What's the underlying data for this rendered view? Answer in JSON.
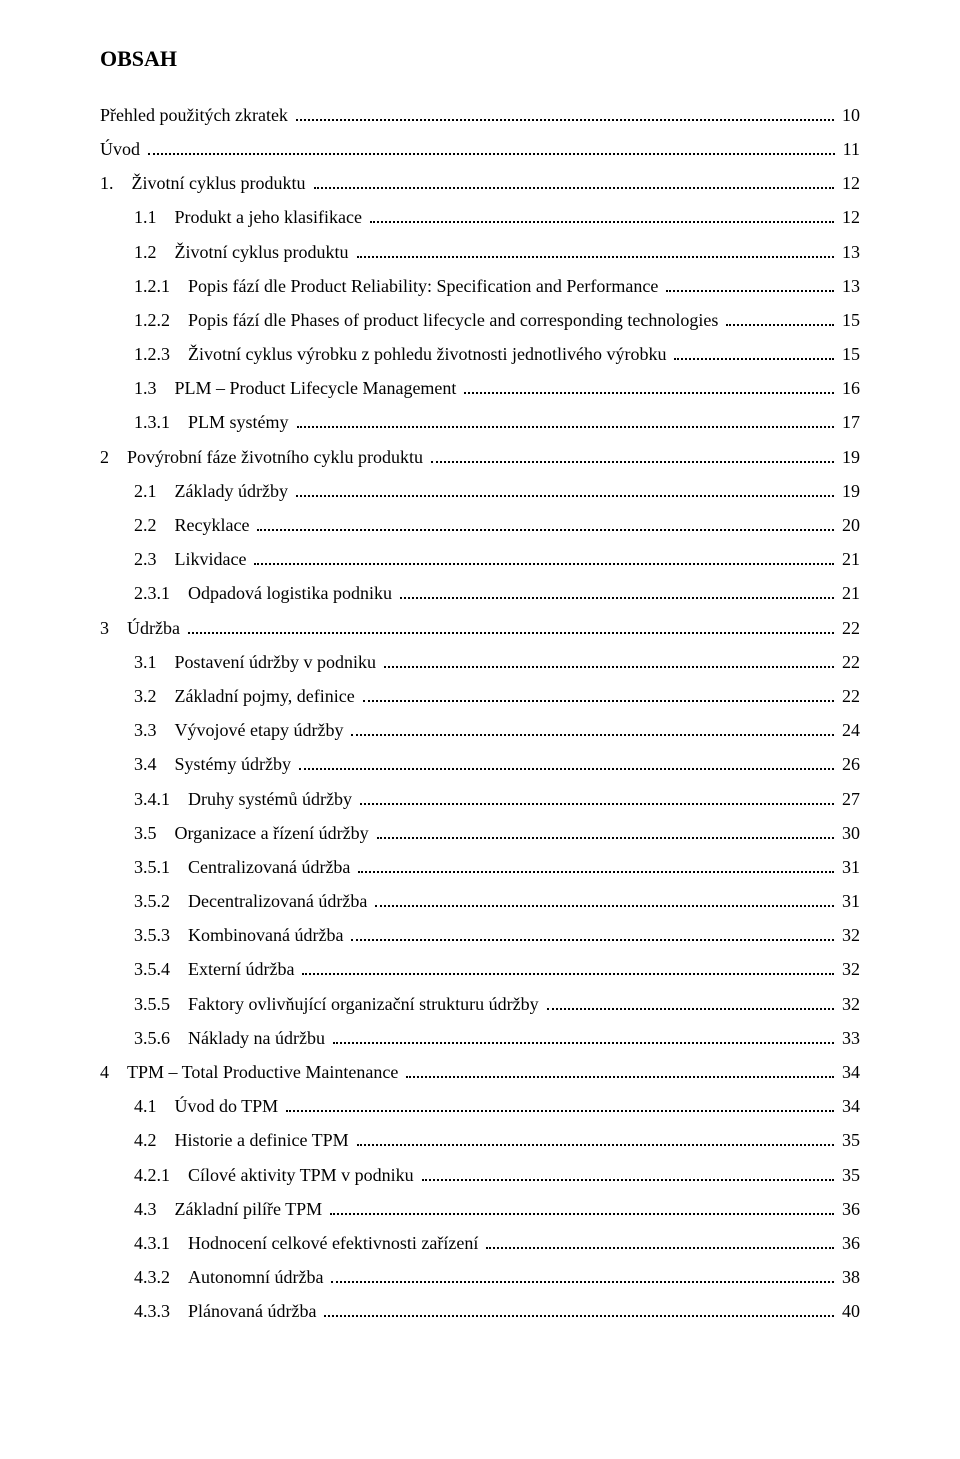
{
  "title": "OBSAH",
  "font_color": "#000000",
  "bg_color": "#ffffff",
  "dot_color": "#000000",
  "entries": [
    {
      "label": "Přehled použitých zkratek",
      "page": "10",
      "indent": 0
    },
    {
      "label": "Úvod",
      "page": "11",
      "indent": 0
    },
    {
      "label": "1. Životní cyklus produktu",
      "page": "12",
      "indent": 0
    },
    {
      "label": "1.1 Produkt a jeho klasifikace",
      "page": "12",
      "indent": 1
    },
    {
      "label": "1.2 Životní cyklus produktu",
      "page": "13",
      "indent": 1
    },
    {
      "label": "1.2.1 Popis fází dle Product Reliability: Specification and Performance",
      "page": "13",
      "indent": 2
    },
    {
      "label": "1.2.2 Popis fází dle Phases of product lifecycle and corresponding technologies",
      "page": "15",
      "indent": 2
    },
    {
      "label": "1.2.3 Životní cyklus výrobku z pohledu životnosti jednotlivého výrobku",
      "page": "15",
      "indent": 2
    },
    {
      "label": "1.3 PLM – Product Lifecycle Management",
      "page": "16",
      "indent": 1
    },
    {
      "label": "1.3.1 PLM systémy",
      "page": "17",
      "indent": 2
    },
    {
      "label": "2 Povýrobní fáze životního cyklu produktu",
      "page": "19",
      "indent": 0
    },
    {
      "label": "2.1 Základy údržby",
      "page": "19",
      "indent": 1
    },
    {
      "label": "2.2 Recyklace",
      "page": "20",
      "indent": 1
    },
    {
      "label": "2.3 Likvidace",
      "page": "21",
      "indent": 1
    },
    {
      "label": "2.3.1 Odpadová logistika podniku",
      "page": "21",
      "indent": 2
    },
    {
      "label": "3 Údržba",
      "page": "22",
      "indent": 0
    },
    {
      "label": "3.1 Postavení údržby v podniku",
      "page": "22",
      "indent": 1
    },
    {
      "label": "3.2 Základní pojmy, definice",
      "page": "22",
      "indent": 1
    },
    {
      "label": "3.3 Vývojové etapy údržby",
      "page": "24",
      "indent": 1
    },
    {
      "label": "3.4 Systémy údržby",
      "page": "26",
      "indent": 1
    },
    {
      "label": "3.4.1 Druhy systémů údržby",
      "page": "27",
      "indent": 2
    },
    {
      "label": "3.5 Organizace a řízení údržby",
      "page": "30",
      "indent": 1
    },
    {
      "label": "3.5.1 Centralizovaná údržba",
      "page": "31",
      "indent": 2
    },
    {
      "label": "3.5.2 Decentralizovaná údržba",
      "page": "31",
      "indent": 2
    },
    {
      "label": "3.5.3 Kombinovaná údržba",
      "page": "32",
      "indent": 2
    },
    {
      "label": "3.5.4 Externí údržba",
      "page": "32",
      "indent": 2
    },
    {
      "label": "3.5.5 Faktory ovlivňující organizační strukturu údržby",
      "page": "32",
      "indent": 2
    },
    {
      "label": "3.5.6 Náklady na údržbu",
      "page": "33",
      "indent": 2
    },
    {
      "label": "4 TPM – Total Productive Maintenance",
      "page": "34",
      "indent": 0
    },
    {
      "label": "4.1 Úvod do TPM",
      "page": "34",
      "indent": 1
    },
    {
      "label": "4.2 Historie a definice TPM",
      "page": "35",
      "indent": 1
    },
    {
      "label": "4.2.1 Cílové aktivity TPM v podniku",
      "page": "35",
      "indent": 2
    },
    {
      "label": "4.3 Základní pilíře TPM",
      "page": "36",
      "indent": 1
    },
    {
      "label": "4.3.1 Hodnocení celkové efektivnosti zařízení",
      "page": "36",
      "indent": 2
    },
    {
      "label": "4.3.2 Autonomní údržba",
      "page": "38",
      "indent": 2
    },
    {
      "label": "4.3.3 Plánovaná údržba",
      "page": "40",
      "indent": 2
    }
  ]
}
